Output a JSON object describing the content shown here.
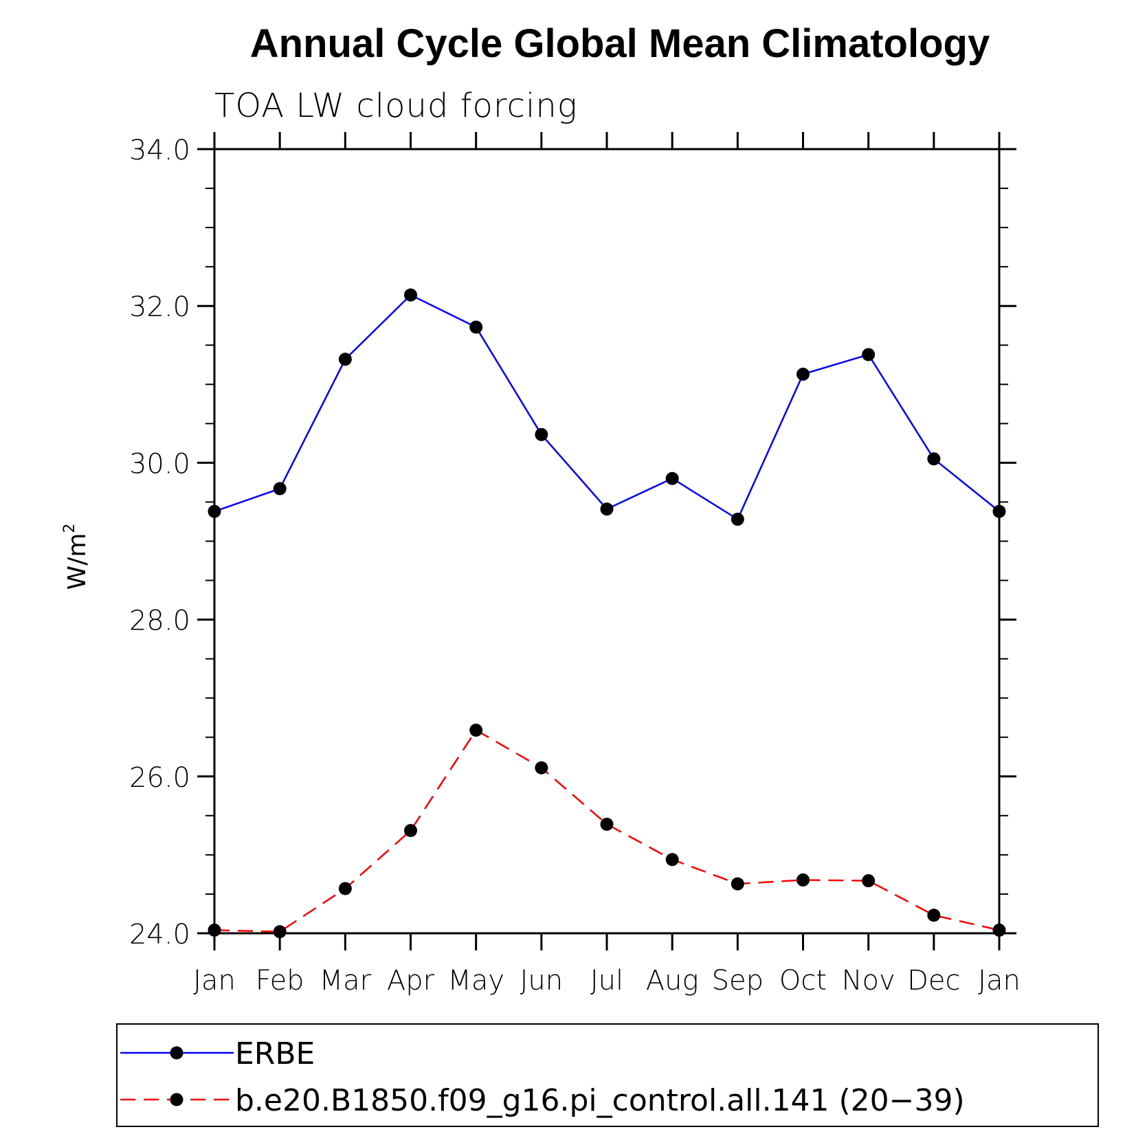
{
  "chart_data": {
    "type": "line",
    "title": "Annual Cycle Global Mean Climatology",
    "subtitle": "TOA LW cloud forcing",
    "ylabel": "W/m",
    "ylabel_sup": "2",
    "xlabel": "",
    "categories": [
      "Jan",
      "Feb",
      "Mar",
      "Apr",
      "May",
      "Jun",
      "Jul",
      "Aug",
      "Sep",
      "Oct",
      "Nov",
      "Dec",
      "Jan"
    ],
    "ylim": [
      24.0,
      34.0
    ],
    "yticks": [
      24.0,
      26.0,
      28.0,
      30.0,
      32.0,
      34.0
    ],
    "ytick_labels": [
      "24.0",
      "26.0",
      "28.0",
      "30.0",
      "32.0",
      "34.0"
    ],
    "y_minor_step": 0.5,
    "grid": false,
    "legend_position": "bottom",
    "series": [
      {
        "name": "ERBE",
        "color": "#0000ff",
        "style": "solid",
        "marker": "filled-circle",
        "values": [
          29.38,
          29.67,
          31.32,
          32.14,
          31.73,
          30.36,
          29.41,
          29.8,
          29.28,
          31.13,
          31.38,
          30.05,
          29.38
        ]
      },
      {
        "name": "b.e20.B1850.f09_g16.pi_control.all.141 (20−39)",
        "color": "#ff0000",
        "style": "dashed",
        "marker": "filled-circle",
        "values": [
          24.04,
          24.02,
          24.57,
          25.31,
          26.59,
          26.11,
          25.39,
          24.94,
          24.63,
          24.68,
          24.67,
          24.23,
          24.04
        ]
      }
    ]
  }
}
